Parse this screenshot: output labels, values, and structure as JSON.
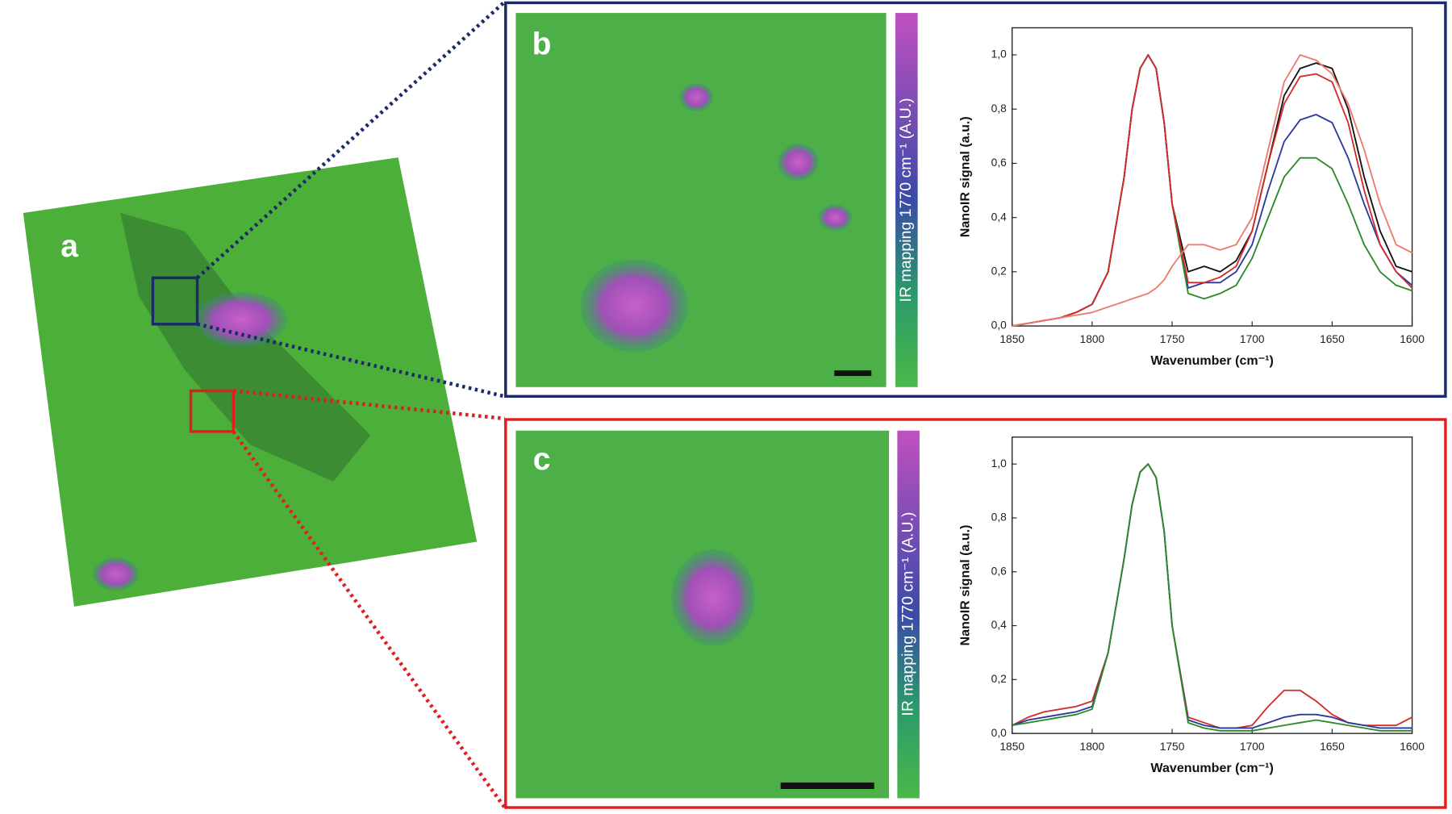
{
  "panels": {
    "a": "a",
    "b": "b",
    "c": "c",
    "colorbar_b": "IR mapping 1770 cm⁻¹ (A.U.)",
    "colorbar_c": "IR mapping 1770 cm⁻¹ (A.U.)"
  },
  "chart_data": [
    {
      "type": "line",
      "x_label": "Wavenumber (cm⁻¹)",
      "y_label": "NanoIR signal (a.u.)",
      "x": [
        1850,
        1840,
        1830,
        1820,
        1810,
        1800,
        1790,
        1780,
        1775,
        1770,
        1765,
        1760,
        1755,
        1750,
        1740,
        1730,
        1720,
        1710,
        1700,
        1690,
        1680,
        1670,
        1660,
        1650,
        1640,
        1630,
        1620,
        1610,
        1600
      ],
      "xlim": [
        1850,
        1600
      ],
      "xticks": [
        1850,
        1800,
        1750,
        1700,
        1650,
        1600
      ],
      "ylim": [
        0,
        1.1
      ],
      "yticks": [
        {
          "value": 0,
          "label": "0,0"
        },
        {
          "value": 0.2,
          "label": "0,2"
        },
        {
          "value": 0.4,
          "label": "0,4"
        },
        {
          "value": 0.6,
          "label": "0,6"
        },
        {
          "value": 0.8,
          "label": "0,8"
        },
        {
          "value": 1,
          "label": "1,0"
        }
      ],
      "series": [
        {
          "name": "black",
          "color": "#111111",
          "values": [
            0,
            0.01,
            0.02,
            0.03,
            0.05,
            0.08,
            0.2,
            0.55,
            0.8,
            0.95,
            1.0,
            0.95,
            0.75,
            0.45,
            0.2,
            0.22,
            0.2,
            0.24,
            0.35,
            0.6,
            0.85,
            0.95,
            0.97,
            0.95,
            0.8,
            0.55,
            0.35,
            0.22,
            0.2
          ]
        },
        {
          "name": "blue",
          "color": "#2a3a9a",
          "values": [
            0,
            0.01,
            0.02,
            0.03,
            0.05,
            0.08,
            0.2,
            0.55,
            0.8,
            0.95,
            1.0,
            0.95,
            0.75,
            0.45,
            0.14,
            0.16,
            0.16,
            0.2,
            0.3,
            0.5,
            0.68,
            0.76,
            0.78,
            0.75,
            0.62,
            0.45,
            0.3,
            0.2,
            0.15
          ]
        },
        {
          "name": "green",
          "color": "#2a8a2a",
          "values": [
            0,
            0.01,
            0.02,
            0.03,
            0.05,
            0.08,
            0.2,
            0.55,
            0.8,
            0.95,
            1.0,
            0.95,
            0.75,
            0.45,
            0.12,
            0.1,
            0.12,
            0.15,
            0.25,
            0.4,
            0.55,
            0.62,
            0.62,
            0.58,
            0.45,
            0.3,
            0.2,
            0.15,
            0.13
          ]
        },
        {
          "name": "red",
          "color": "#d42a2a",
          "values": [
            0,
            0.01,
            0.02,
            0.03,
            0.05,
            0.08,
            0.2,
            0.55,
            0.8,
            0.95,
            1.0,
            0.95,
            0.75,
            0.45,
            0.16,
            0.16,
            0.18,
            0.22,
            0.35,
            0.6,
            0.82,
            0.92,
            0.93,
            0.9,
            0.75,
            0.5,
            0.3,
            0.2,
            0.14
          ]
        },
        {
          "name": "light red",
          "color": "#ee7a6e",
          "values": [
            0,
            0.01,
            0.02,
            0.03,
            0.04,
            0.05,
            0.07,
            0.09,
            0.1,
            0.11,
            0.12,
            0.14,
            0.17,
            0.22,
            0.3,
            0.3,
            0.28,
            0.3,
            0.4,
            0.65,
            0.9,
            1.0,
            0.98,
            0.93,
            0.82,
            0.65,
            0.45,
            0.3,
            0.27
          ]
        }
      ]
    },
    {
      "type": "line",
      "x_label": "Wavenumber (cm⁻¹)",
      "y_label": "NanoIR signal (a.u.)",
      "x": [
        1850,
        1840,
        1830,
        1820,
        1810,
        1800,
        1790,
        1780,
        1775,
        1770,
        1765,
        1760,
        1755,
        1750,
        1740,
        1730,
        1720,
        1710,
        1700,
        1690,
        1680,
        1670,
        1660,
        1650,
        1640,
        1630,
        1620,
        1610,
        1600
      ],
      "xlim": [
        1850,
        1600
      ],
      "xticks": [
        1850,
        1800,
        1750,
        1700,
        1650,
        1600
      ],
      "ylim": [
        0,
        1.1
      ],
      "yticks": [
        {
          "value": 0,
          "label": "0,0"
        },
        {
          "value": 0.2,
          "label": "0,2"
        },
        {
          "value": 0.4,
          "label": "0,4"
        },
        {
          "value": 0.6,
          "label": "0,6"
        },
        {
          "value": 0.8,
          "label": "0,8"
        },
        {
          "value": 1,
          "label": "1,0"
        }
      ],
      "series": [
        {
          "name": "red",
          "color": "#d42a2a",
          "values": [
            0.03,
            0.06,
            0.08,
            0.09,
            0.1,
            0.12,
            0.3,
            0.65,
            0.85,
            0.97,
            1.0,
            0.95,
            0.75,
            0.4,
            0.06,
            0.04,
            0.02,
            0.02,
            0.03,
            0.1,
            0.16,
            0.16,
            0.12,
            0.07,
            0.04,
            0.03,
            0.03,
            0.03,
            0.06
          ]
        },
        {
          "name": "blue",
          "color": "#2a3a9a",
          "values": [
            0.03,
            0.05,
            0.06,
            0.07,
            0.08,
            0.1,
            0.3,
            0.65,
            0.85,
            0.97,
            1.0,
            0.95,
            0.75,
            0.4,
            0.05,
            0.03,
            0.02,
            0.02,
            0.02,
            0.04,
            0.06,
            0.07,
            0.07,
            0.06,
            0.04,
            0.03,
            0.02,
            0.02,
            0.02
          ]
        },
        {
          "name": "green",
          "color": "#2a8a2a",
          "values": [
            0.03,
            0.04,
            0.05,
            0.06,
            0.07,
            0.09,
            0.3,
            0.65,
            0.85,
            0.97,
            1.0,
            0.95,
            0.75,
            0.4,
            0.04,
            0.02,
            0.01,
            0.01,
            0.01,
            0.02,
            0.03,
            0.04,
            0.05,
            0.04,
            0.03,
            0.02,
            0.01,
            0.01,
            0.01
          ]
        }
      ]
    }
  ]
}
